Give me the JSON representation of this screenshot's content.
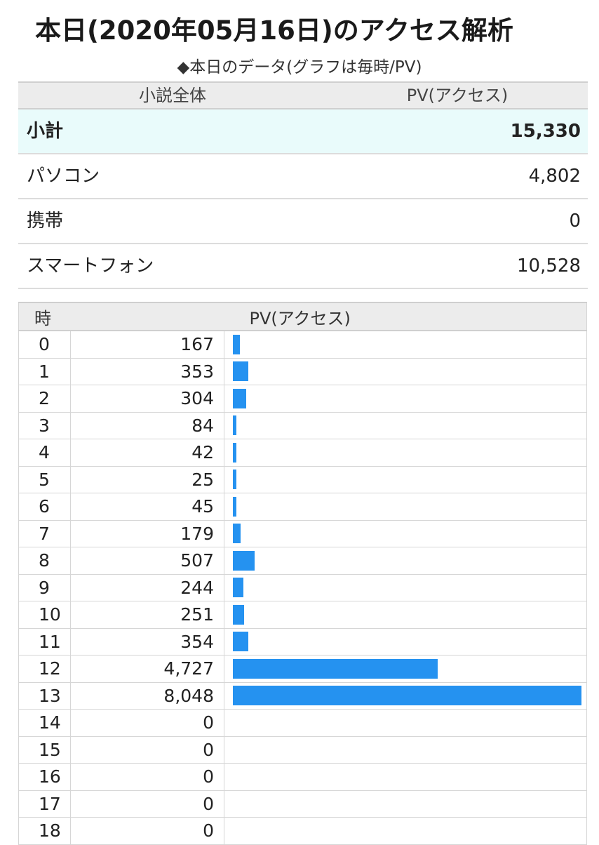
{
  "page": {
    "title": "本日(2020年05月16日)のアクセス解析",
    "subtitle": "◆本日のデータ(グラフは毎時/PV)"
  },
  "summary": {
    "header_label": "小説全体",
    "header_value": "PV(アクセス)",
    "rows": [
      {
        "label": "小計",
        "value": "15,330"
      },
      {
        "label": "パソコン",
        "value": "4,802"
      },
      {
        "label": "携帯",
        "value": "0"
      },
      {
        "label": "スマートフォン",
        "value": "10,528"
      }
    ]
  },
  "hourly": {
    "header_hour": "時",
    "header_pv": "PV(アクセス)",
    "bar_color": "#2592f0"
  },
  "chart_data": {
    "type": "bar",
    "categories": [
      "0",
      "1",
      "2",
      "3",
      "4",
      "5",
      "6",
      "7",
      "8",
      "9",
      "10",
      "11",
      "12",
      "13",
      "14",
      "15",
      "16",
      "17",
      "18"
    ],
    "values": [
      167,
      353,
      304,
      84,
      42,
      25,
      45,
      179,
      507,
      244,
      251,
      354,
      4727,
      8048,
      0,
      0,
      0,
      0,
      0
    ],
    "value_labels": [
      "167",
      "353",
      "304",
      "84",
      "42",
      "25",
      "45",
      "179",
      "507",
      "244",
      "251",
      "354",
      "4,727",
      "8,048",
      "0",
      "0",
      "0",
      "0",
      "0"
    ],
    "title": "",
    "xlabel": "時",
    "ylabel": "PV(アクセス)"
  }
}
